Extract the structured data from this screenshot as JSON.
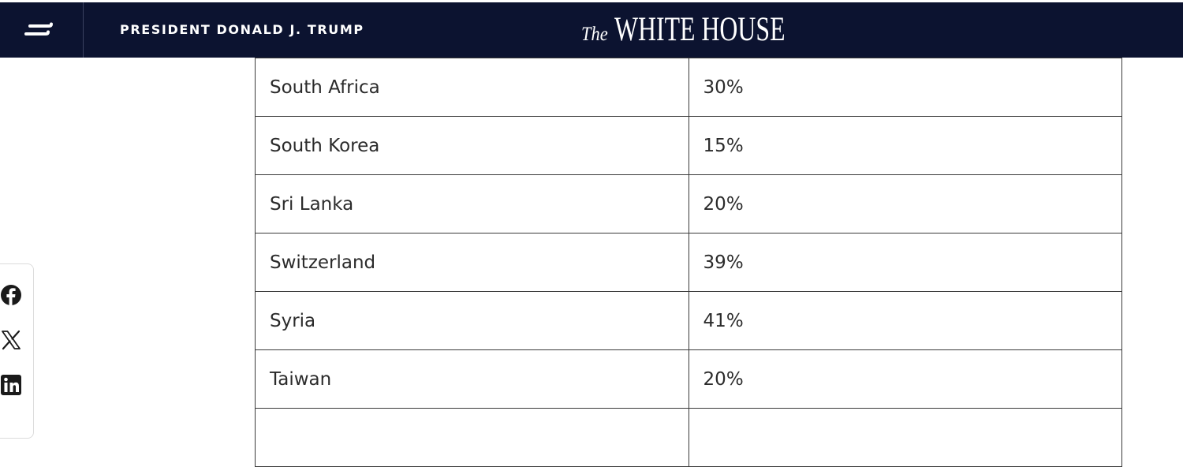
{
  "header": {
    "menu_icon": "menu-icon",
    "title": "PRESIDENT DONALD J. TRUMP",
    "logo_prefix": "The",
    "logo_main": "WHITE HOUSE",
    "background_color": "#0c1330"
  },
  "share": {
    "icons": [
      "facebook-icon",
      "x-icon",
      "linkedin-icon"
    ]
  },
  "table": {
    "rows": [
      {
        "country": "South Africa",
        "rate": "30%"
      },
      {
        "country": "South Korea",
        "rate": "15%"
      },
      {
        "country": "Sri Lanka",
        "rate": "20%"
      },
      {
        "country": "Switzerland",
        "rate": "39%"
      },
      {
        "country": "Syria",
        "rate": "41%"
      },
      {
        "country": "Taiwan",
        "rate": "20%"
      },
      {
        "country": "",
        "rate": ""
      }
    ]
  }
}
